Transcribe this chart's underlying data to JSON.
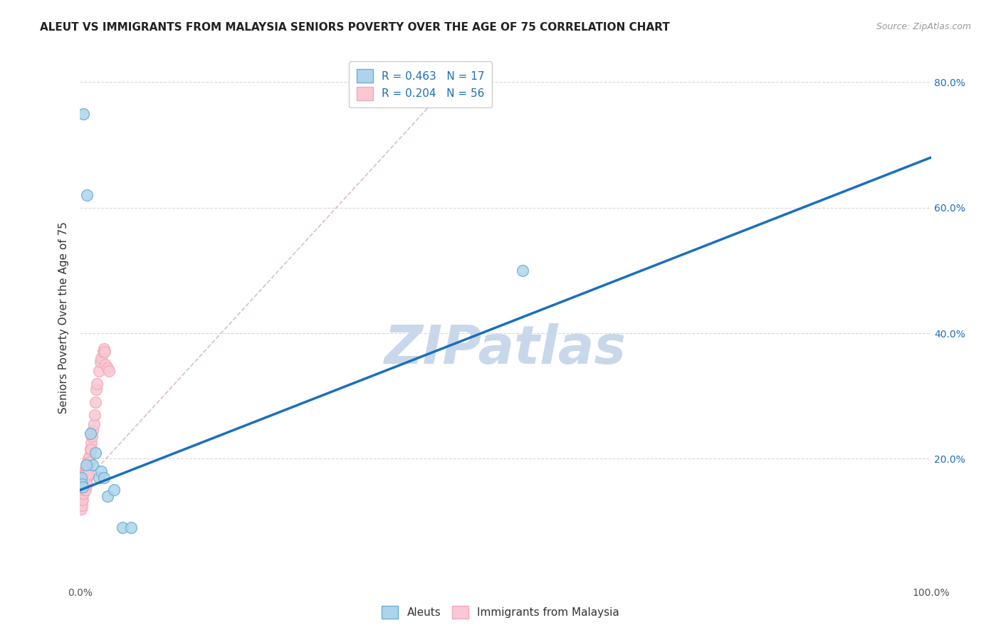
{
  "title": "ALEUT VS IMMIGRANTS FROM MALAYSIA SENIORS POVERTY OVER THE AGE OF 75 CORRELATION CHART",
  "source": "Source: ZipAtlas.com",
  "ylabel": "Seniors Poverty Over the Age of 75",
  "xlim": [
    0,
    1.0
  ],
  "ylim": [
    0,
    0.85
  ],
  "ytick_positions": [
    0.0,
    0.2,
    0.4,
    0.6,
    0.8
  ],
  "ytick_labels_right": [
    "",
    "20.0%",
    "40.0%",
    "60.0%",
    "80.0%"
  ],
  "aleuts_x": [
    0.004,
    0.008,
    0.012,
    0.015,
    0.018,
    0.022,
    0.025,
    0.028,
    0.032,
    0.04,
    0.05,
    0.06,
    0.52,
    0.001,
    0.002,
    0.003,
    0.007
  ],
  "aleuts_y": [
    0.75,
    0.62,
    0.24,
    0.19,
    0.21,
    0.17,
    0.18,
    0.17,
    0.14,
    0.15,
    0.09,
    0.09,
    0.5,
    0.17,
    0.16,
    0.155,
    0.19
  ],
  "malaysia_x": [
    0.001,
    0.001,
    0.001,
    0.002,
    0.002,
    0.002,
    0.002,
    0.003,
    0.003,
    0.003,
    0.003,
    0.004,
    0.004,
    0.004,
    0.004,
    0.005,
    0.005,
    0.005,
    0.005,
    0.006,
    0.006,
    0.006,
    0.006,
    0.007,
    0.007,
    0.007,
    0.008,
    0.008,
    0.008,
    0.008,
    0.009,
    0.009,
    0.01,
    0.01,
    0.01,
    0.011,
    0.011,
    0.012,
    0.013,
    0.013,
    0.014,
    0.015,
    0.016,
    0.017,
    0.018,
    0.019,
    0.02,
    0.022,
    0.024,
    0.025,
    0.027,
    0.028,
    0.029,
    0.03,
    0.032,
    0.034
  ],
  "malaysia_y": [
    0.14,
    0.13,
    0.12,
    0.155,
    0.145,
    0.135,
    0.125,
    0.165,
    0.155,
    0.145,
    0.135,
    0.175,
    0.165,
    0.155,
    0.145,
    0.18,
    0.17,
    0.16,
    0.15,
    0.18,
    0.17,
    0.16,
    0.15,
    0.185,
    0.175,
    0.165,
    0.19,
    0.18,
    0.17,
    0.16,
    0.195,
    0.185,
    0.2,
    0.19,
    0.175,
    0.205,
    0.195,
    0.215,
    0.225,
    0.215,
    0.235,
    0.245,
    0.255,
    0.27,
    0.29,
    0.31,
    0.32,
    0.34,
    0.355,
    0.36,
    0.37,
    0.375,
    0.37,
    0.35,
    0.345,
    0.34
  ],
  "aleut_face_color": "#aed4ec",
  "aleut_edge_color": "#6aaed6",
  "malaysia_face_color": "#f8c8d4",
  "malaysia_edge_color": "#f4a8b8",
  "aleut_line_color": "#1a6fbe",
  "malaysia_line_color": "#e87090",
  "ref_line_color": "#d4b8c0",
  "grid_color": "#d8d8d8",
  "watermark_color": "#c8d8ea",
  "blue_line_x0": 0.0,
  "blue_line_y0": 0.15,
  "blue_line_x1": 1.0,
  "blue_line_y1": 0.68,
  "pink_line_x0": 0.0,
  "pink_line_y0": 0.155,
  "pink_line_x1": 0.45,
  "pink_line_y1": 0.82,
  "R_aleut": 0.463,
  "N_aleut": 17,
  "R_malaysia": 0.204,
  "N_malaysia": 56,
  "legend_label_aleut": "Aleuts",
  "legend_label_malaysia": "Immigrants from Malaysia",
  "title_fontsize": 11,
  "axis_label_fontsize": 11,
  "tick_fontsize": 10,
  "legend_fontsize": 11,
  "source_fontsize": 9
}
